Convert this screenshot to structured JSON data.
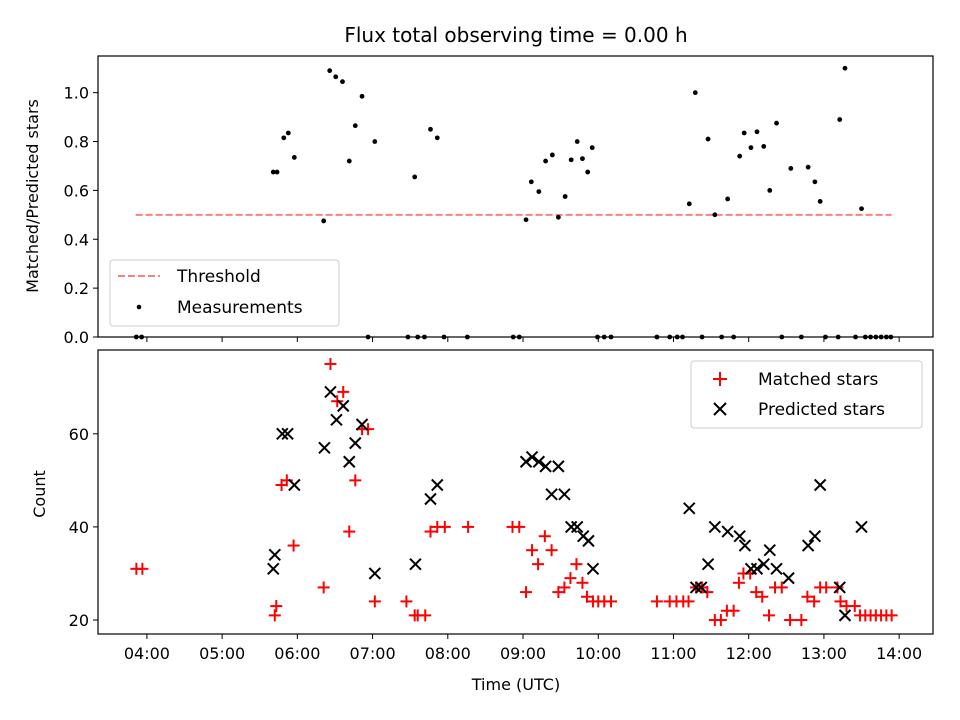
{
  "figure": {
    "title": "Flux total observing time = 0.00 h",
    "x_ticks": [
      "04:00",
      "05:00",
      "06:00",
      "07:00",
      "08:00",
      "09:00",
      "10:00",
      "11:00",
      "12:00",
      "13:00",
      "14:00"
    ],
    "xlabel": "Time (UTC)"
  },
  "chart_data": [
    {
      "type": "scatter",
      "ylabel": "Matched/Predicted stars",
      "xlim": [
        3.35,
        14.45
      ],
      "ylim": [
        0,
        1.15
      ],
      "y_ticks": [
        "0.0",
        "0.2",
        "0.4",
        "0.6",
        "0.8",
        "1.0"
      ],
      "legend_position": "lower-left",
      "colors": {
        "threshold": "#ff7f7f",
        "measurements": "#000000"
      },
      "threshold": {
        "name": "Threshold",
        "value": 0.5,
        "x_range": [
          3.85,
          13.9
        ]
      },
      "series": [
        {
          "name": "Measurements",
          "points": [
            [
              3.86,
              0
            ],
            [
              3.93,
              0
            ],
            [
              5.68,
              0.675
            ],
            [
              5.73,
              0.675
            ],
            [
              5.82,
              0.815
            ],
            [
              5.88,
              0.835
            ],
            [
              5.96,
              0.735
            ],
            [
              6.35,
              0.475
            ],
            [
              6.43,
              1.09
            ],
            [
              6.51,
              1.065
            ],
            [
              6.6,
              1.045
            ],
            [
              6.69,
              0.72
            ],
            [
              6.77,
              0.865
            ],
            [
              6.86,
              0.985
            ],
            [
              6.94,
              0
            ],
            [
              7.03,
              0.8
            ],
            [
              7.47,
              0
            ],
            [
              7.56,
              0.655
            ],
            [
              7.6,
              0
            ],
            [
              7.69,
              0
            ],
            [
              7.77,
              0.85
            ],
            [
              7.86,
              0.815
            ],
            [
              7.95,
              0
            ],
            [
              8.26,
              0
            ],
            [
              8.87,
              0
            ],
            [
              8.95,
              0
            ],
            [
              9.04,
              0.48
            ],
            [
              9.11,
              0.635
            ],
            [
              9.21,
              0.595
            ],
            [
              9.3,
              0.72
            ],
            [
              9.39,
              0.745
            ],
            [
              9.47,
              0.49
            ],
            [
              9.56,
              0.575
            ],
            [
              9.64,
              0.725
            ],
            [
              9.72,
              0.8
            ],
            [
              9.79,
              0.73
            ],
            [
              9.86,
              0.675
            ],
            [
              9.92,
              0.775
            ],
            [
              9.99,
              0
            ],
            [
              10.08,
              0
            ],
            [
              10.17,
              0
            ],
            [
              10.78,
              0
            ],
            [
              10.95,
              0
            ],
            [
              11.05,
              0
            ],
            [
              11.12,
              0
            ],
            [
              11.21,
              0.545
            ],
            [
              11.29,
              1.0
            ],
            [
              11.38,
              0
            ],
            [
              11.46,
              0.81
            ],
            [
              11.55,
              0.5
            ],
            [
              11.64,
              0
            ],
            [
              11.72,
              0.565
            ],
            [
              11.8,
              0
            ],
            [
              11.88,
              0.74
            ],
            [
              11.94,
              0.835
            ],
            [
              12.03,
              0.775
            ],
            [
              12.11,
              0.84
            ],
            [
              12.2,
              0.78
            ],
            [
              12.28,
              0.6
            ],
            [
              12.37,
              0.875
            ],
            [
              12.44,
              0
            ],
            [
              12.56,
              0.69
            ],
            [
              12.7,
              0
            ],
            [
              12.79,
              0.695
            ],
            [
              12.88,
              0.635
            ],
            [
              12.95,
              0.555
            ],
            [
              13.02,
              0
            ],
            [
              13.19,
              0
            ],
            [
              13.21,
              0.89
            ],
            [
              13.28,
              1.1
            ],
            [
              13.42,
              0
            ],
            [
              13.5,
              0.525
            ],
            [
              13.55,
              0
            ],
            [
              13.62,
              0
            ],
            [
              13.69,
              0
            ],
            [
              13.76,
              0
            ],
            [
              13.83,
              0
            ],
            [
              13.89,
              0
            ]
          ]
        }
      ]
    },
    {
      "type": "scatter",
      "ylabel": "Count",
      "xlim": [
        3.35,
        14.45
      ],
      "ylim": [
        17,
        78
      ],
      "y_ticks": [
        "20",
        "40",
        "60"
      ],
      "legend_position": "upper-right",
      "colors": {
        "matched": "#ff0000",
        "predicted": "#000000"
      },
      "series": [
        {
          "name": "Matched stars",
          "marker": "plus",
          "points": [
            [
              3.86,
              31
            ],
            [
              3.94,
              31
            ],
            [
              5.7,
              21
            ],
            [
              5.72,
              23
            ],
            [
              5.79,
              49
            ],
            [
              5.86,
              50
            ],
            [
              5.95,
              36
            ],
            [
              6.35,
              27
            ],
            [
              6.44,
              75
            ],
            [
              6.53,
              67
            ],
            [
              6.61,
              69
            ],
            [
              6.69,
              39
            ],
            [
              6.77,
              50
            ],
            [
              6.86,
              61
            ],
            [
              6.94,
              61
            ],
            [
              7.03,
              24
            ],
            [
              7.45,
              24
            ],
            [
              7.56,
              21
            ],
            [
              7.6,
              21
            ],
            [
              7.7,
              21
            ],
            [
              7.77,
              39
            ],
            [
              7.86,
              40
            ],
            [
              7.96,
              40
            ],
            [
              8.27,
              40
            ],
            [
              8.86,
              40
            ],
            [
              8.95,
              40
            ],
            [
              9.04,
              26
            ],
            [
              9.12,
              35
            ],
            [
              9.2,
              32
            ],
            [
              9.29,
              38
            ],
            [
              9.38,
              35
            ],
            [
              9.47,
              26
            ],
            [
              9.55,
              27
            ],
            [
              9.63,
              29
            ],
            [
              9.71,
              32
            ],
            [
              9.79,
              28
            ],
            [
              9.85,
              25
            ],
            [
              9.93,
              24
            ],
            [
              10.0,
              24
            ],
            [
              10.08,
              24
            ],
            [
              10.17,
              24
            ],
            [
              10.78,
              24
            ],
            [
              10.95,
              24
            ],
            [
              11.04,
              24
            ],
            [
              11.13,
              24
            ],
            [
              11.2,
              24
            ],
            [
              11.3,
              27
            ],
            [
              11.38,
              27
            ],
            [
              11.45,
              26
            ],
            [
              11.55,
              20
            ],
            [
              11.63,
              20
            ],
            [
              11.71,
              22
            ],
            [
              11.8,
              22
            ],
            [
              11.87,
              28
            ],
            [
              11.93,
              30
            ],
            [
              12.02,
              30
            ],
            [
              12.1,
              26
            ],
            [
              12.18,
              25
            ],
            [
              12.27,
              21
            ],
            [
              12.35,
              27
            ],
            [
              12.44,
              27
            ],
            [
              12.55,
              20
            ],
            [
              12.7,
              20
            ],
            [
              12.78,
              25
            ],
            [
              12.87,
              24
            ],
            [
              12.95,
              27
            ],
            [
              13.03,
              27
            ],
            [
              13.18,
              27
            ],
            [
              13.22,
              24
            ],
            [
              13.3,
              23
            ],
            [
              13.41,
              23
            ],
            [
              13.48,
              21
            ],
            [
              13.55,
              21
            ],
            [
              13.62,
              21
            ],
            [
              13.69,
              21
            ],
            [
              13.76,
              21
            ],
            [
              13.83,
              21
            ],
            [
              13.9,
              21
            ]
          ]
        },
        {
          "name": "Predicted stars",
          "marker": "x",
          "points": [
            [
              5.68,
              31
            ],
            [
              5.7,
              34
            ],
            [
              5.8,
              60
            ],
            [
              5.87,
              60
            ],
            [
              5.96,
              49
            ],
            [
              6.36,
              57
            ],
            [
              6.44,
              69
            ],
            [
              6.52,
              63
            ],
            [
              6.61,
              66
            ],
            [
              6.69,
              54
            ],
            [
              6.77,
              58
            ],
            [
              6.86,
              62
            ],
            [
              7.03,
              30
            ],
            [
              7.57,
              32
            ],
            [
              7.77,
              46
            ],
            [
              7.86,
              49
            ],
            [
              9.04,
              54
            ],
            [
              9.12,
              55
            ],
            [
              9.21,
              54
            ],
            [
              9.3,
              53
            ],
            [
              9.38,
              47
            ],
            [
              9.47,
              53
            ],
            [
              9.55,
              47
            ],
            [
              9.64,
              40
            ],
            [
              9.72,
              40
            ],
            [
              9.8,
              38
            ],
            [
              9.87,
              37
            ],
            [
              9.93,
              31
            ],
            [
              11.21,
              44
            ],
            [
              11.3,
              27
            ],
            [
              11.37,
              27
            ],
            [
              11.46,
              32
            ],
            [
              11.55,
              40
            ],
            [
              11.72,
              39
            ],
            [
              11.88,
              38
            ],
            [
              11.95,
              36
            ],
            [
              12.03,
              31
            ],
            [
              12.11,
              31
            ],
            [
              12.2,
              32
            ],
            [
              12.28,
              35
            ],
            [
              12.37,
              31
            ],
            [
              12.53,
              29
            ],
            [
              12.79,
              36
            ],
            [
              12.88,
              38
            ],
            [
              12.95,
              49
            ],
            [
              13.21,
              27
            ],
            [
              13.28,
              21
            ],
            [
              13.5,
              40
            ]
          ]
        }
      ]
    }
  ]
}
